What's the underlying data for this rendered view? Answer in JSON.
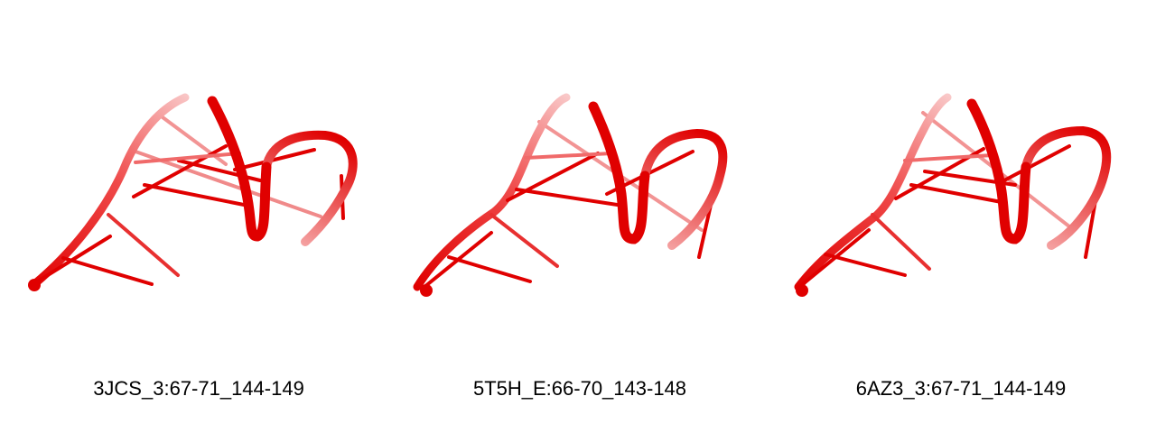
{
  "colors": {
    "ribbon": "#e00000",
    "ribbon_light": "#f27a7a",
    "background": "#ffffff"
  },
  "panels": [
    {
      "label": "3JCS_3:67-71_144-149"
    },
    {
      "label": "5T5H_E:66-70_143-148"
    },
    {
      "label": "6AZ3_3:67-71_144-149"
    }
  ]
}
